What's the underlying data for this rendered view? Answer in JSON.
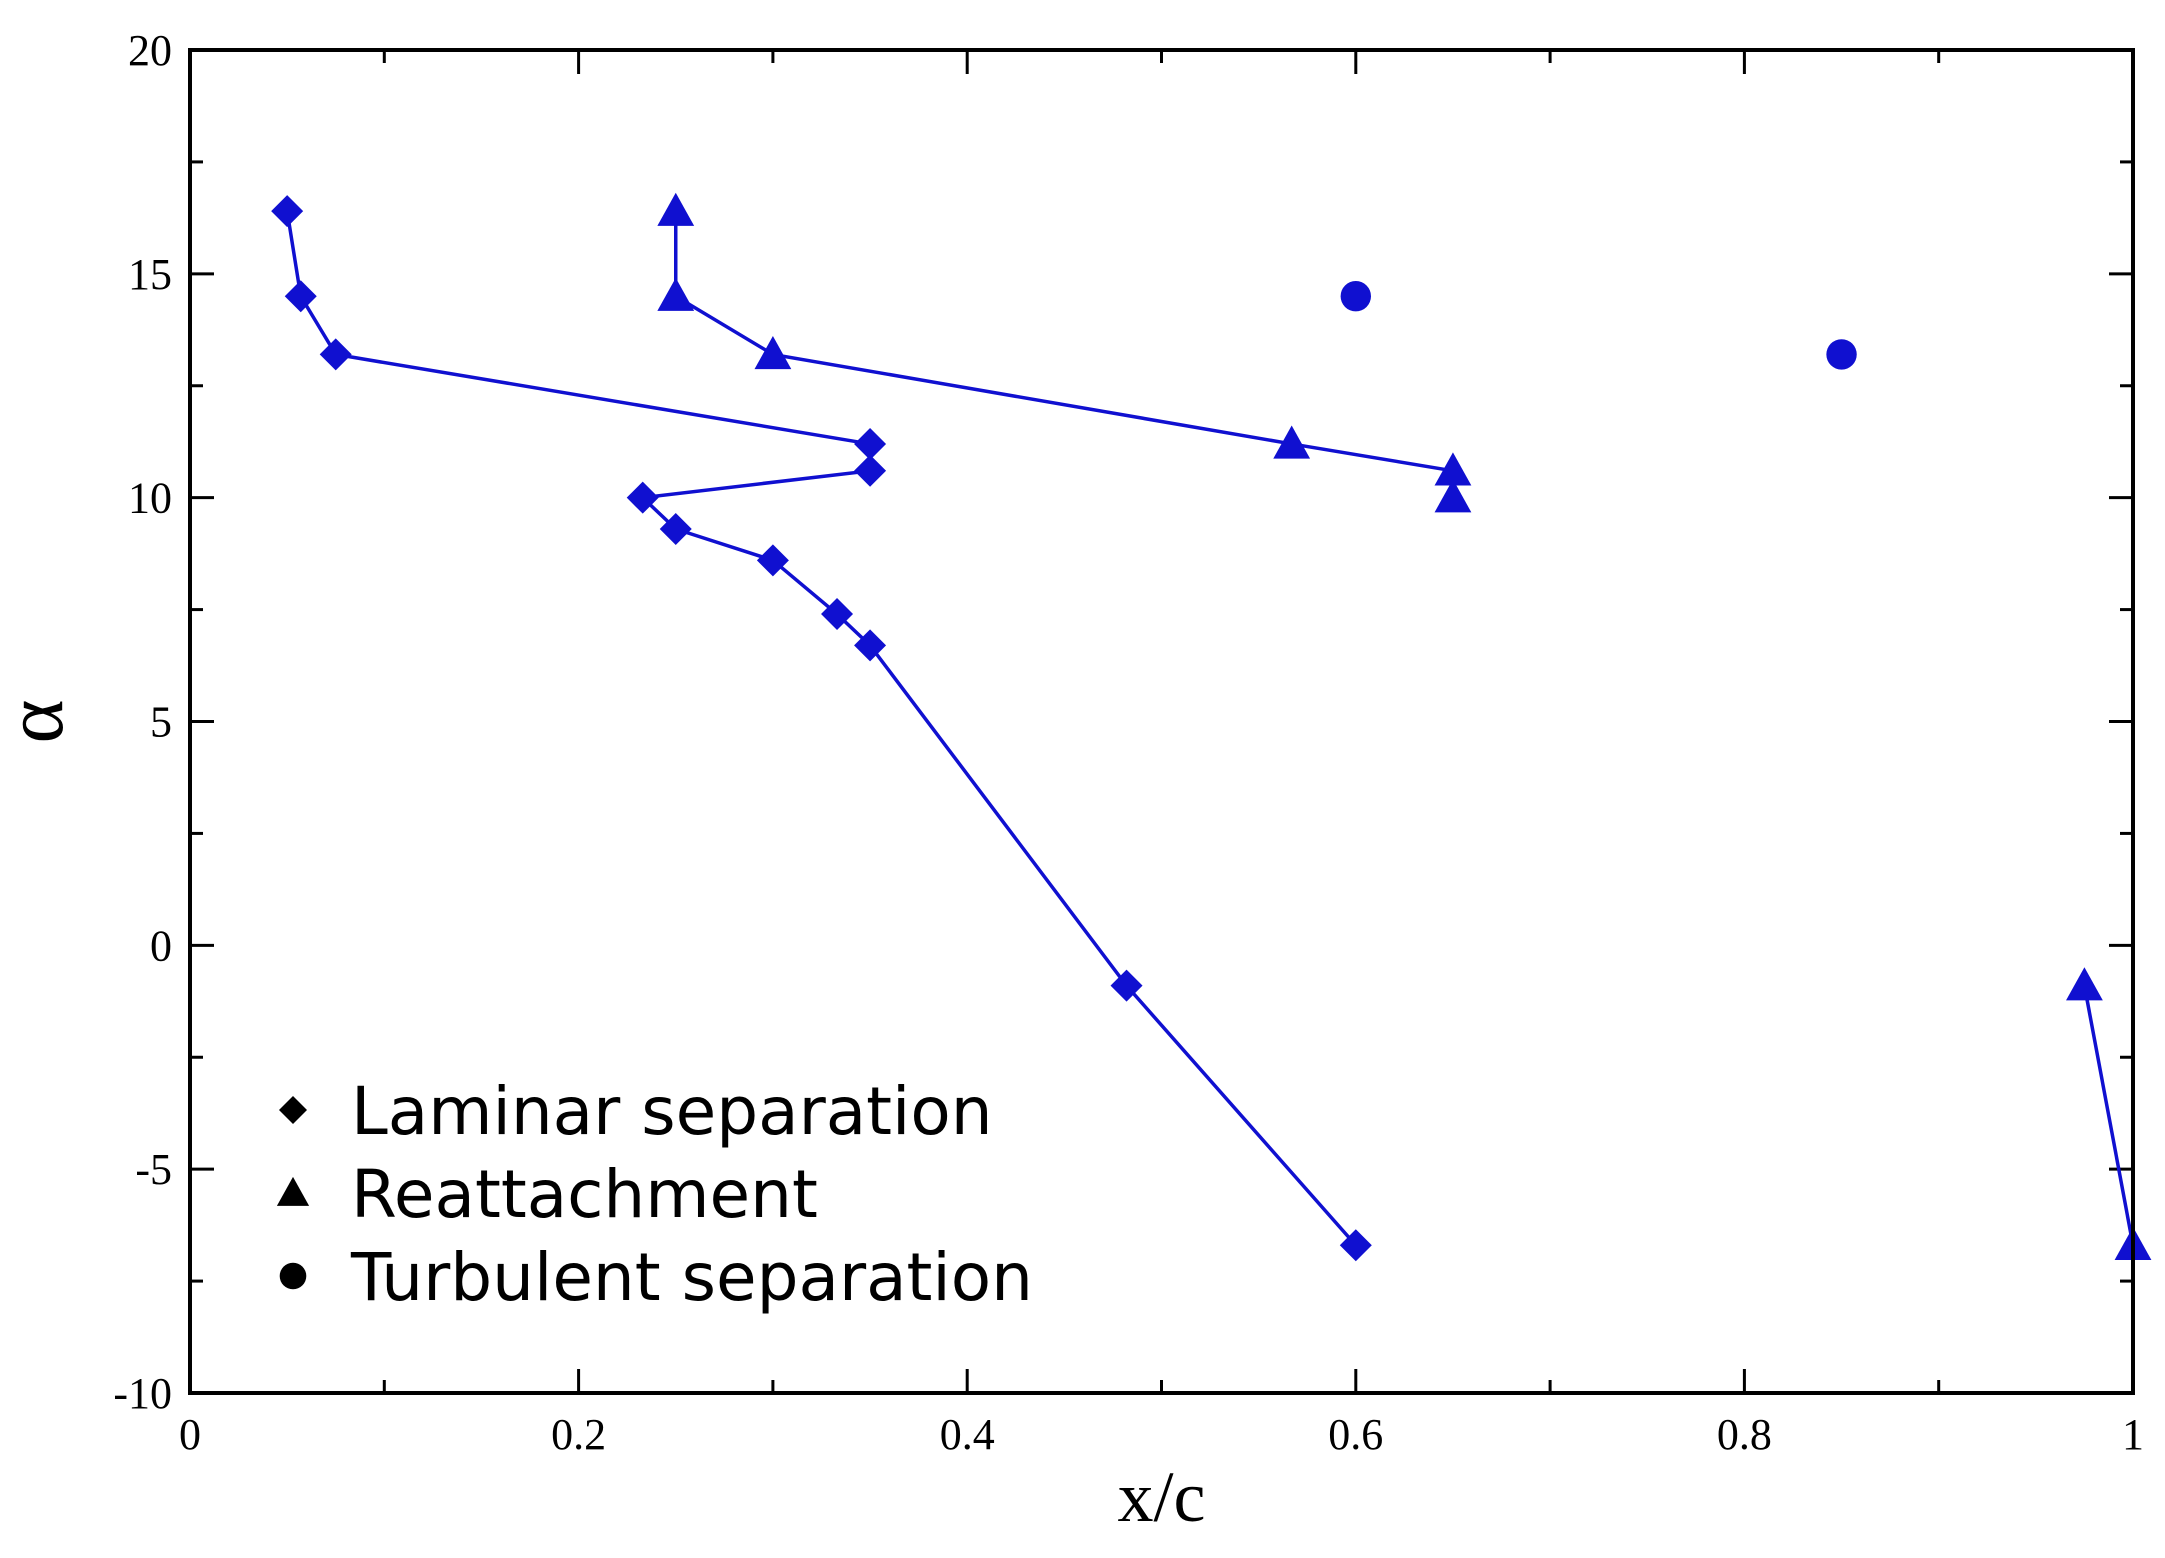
{
  "chart_data": {
    "type": "scatter",
    "title": "",
    "xlabel": "x/c",
    "ylabel": "α",
    "xlim": [
      0,
      1
    ],
    "ylim": [
      -10,
      20
    ],
    "x_ticks": [
      0,
      0.2,
      0.4,
      0.6,
      0.8,
      1
    ],
    "x_tick_labels": [
      "0",
      "0.2",
      "0.4",
      "0.6",
      "0.8",
      "1"
    ],
    "y_ticks": [
      -10,
      -5,
      0,
      5,
      10,
      15,
      20
    ],
    "y_tick_labels": [
      "-10",
      "-5",
      "0",
      "5",
      "10",
      "15",
      "20"
    ],
    "grid": false,
    "series_color": "#1010d0",
    "legend_placement": "bottom-left",
    "series": [
      {
        "name": "Laminar separation",
        "marker": "diamond",
        "connected": true,
        "points": [
          [
            0.05,
            16.4
          ],
          [
            0.057,
            14.5
          ],
          [
            0.075,
            13.2
          ],
          [
            0.35,
            11.2
          ],
          [
            0.35,
            10.6
          ],
          [
            0.233,
            10.0
          ],
          [
            0.25,
            9.3
          ],
          [
            0.3,
            8.6
          ],
          [
            0.333,
            7.4
          ],
          [
            0.35,
            6.7
          ],
          [
            0.482,
            -0.9
          ],
          [
            0.6,
            -6.7
          ]
        ]
      },
      {
        "name": "Reattachment",
        "marker": "triangle",
        "connected": true,
        "points": [
          [
            0.25,
            16.4
          ],
          [
            0.25,
            14.5
          ],
          [
            0.3,
            13.2
          ],
          [
            0.567,
            11.2
          ],
          [
            0.65,
            10.6
          ],
          [
            0.65,
            10.0
          ]
        ],
        "extra_segments": [
          [
            [
              0.975,
              -0.9
            ],
            [
              1.0,
              -6.7
            ]
          ]
        ]
      },
      {
        "name": "Turbulent separation",
        "marker": "circle",
        "connected": false,
        "points": [
          [
            0.6,
            14.5
          ],
          [
            0.85,
            13.2
          ]
        ]
      }
    ]
  }
}
